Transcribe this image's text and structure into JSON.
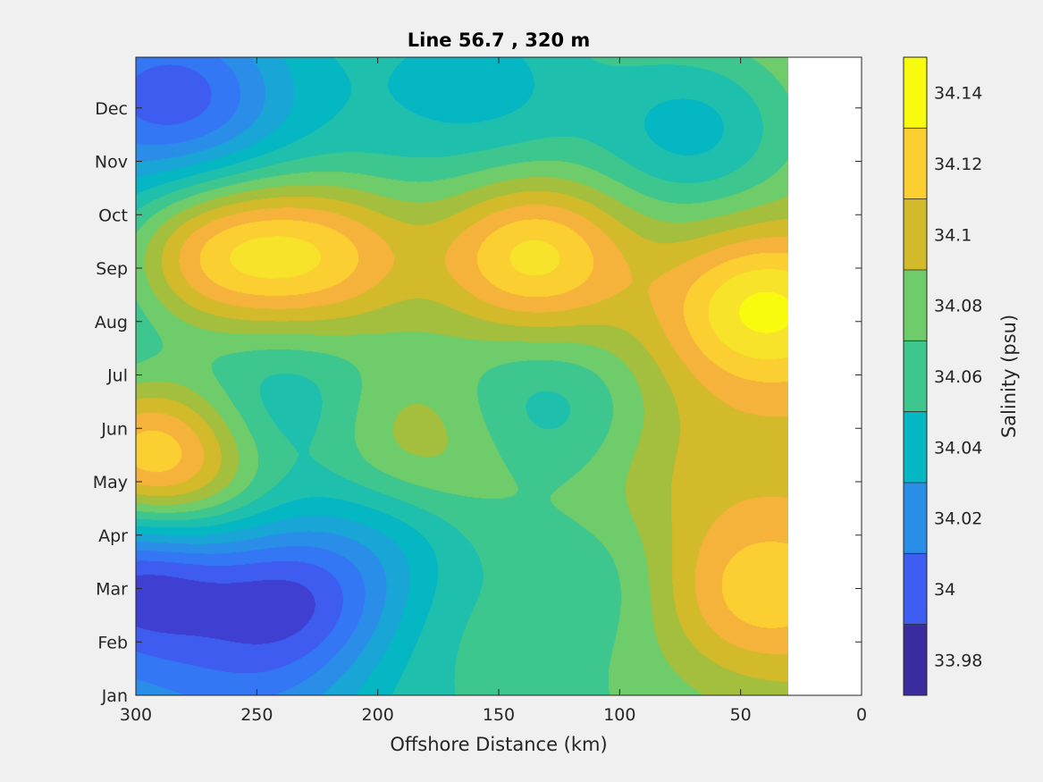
{
  "chart_data": {
    "type": "heatmap",
    "subtype": "filled-contour",
    "title": "Line 56.7 , 320 m",
    "xlabel": "Offshore Distance (km)",
    "ylabel": "",
    "xlim": [
      300,
      0
    ],
    "x_direction": "reversed",
    "x_ticks": [
      300,
      250,
      200,
      150,
      100,
      50,
      0
    ],
    "x_tick_labels": [
      "300",
      "250",
      "200",
      "150",
      "100",
      "50",
      "0"
    ],
    "y_ticks": [
      1,
      2,
      3,
      4,
      5,
      6,
      7,
      8,
      9,
      10,
      11,
      12
    ],
    "y_tick_labels": [
      "Jan",
      "Feb",
      "Mar",
      "Apr",
      "May",
      "Jun",
      "Jul",
      "Aug",
      "Sep",
      "Oct",
      "Nov",
      "Dec"
    ],
    "ylim": [
      1,
      12.95
    ],
    "data_extent_x": [
      300,
      30
    ],
    "colorbar": {
      "label": "Salinity (psu)",
      "range": [
        33.97,
        34.15
      ],
      "level_step": 0.01,
      "tick_values": [
        33.98,
        34.0,
        34.02,
        34.04,
        34.06,
        34.08,
        34.1,
        34.12,
        34.14
      ],
      "tick_labels": [
        "33.98",
        "34",
        "34.02",
        "34.04",
        "34.06",
        "34.08",
        "34.1",
        "34.12",
        "34.14"
      ],
      "colors": [
        "#3a2c9e",
        "#3f3fd1",
        "#3e5cf0",
        "#3377f4",
        "#2a8ee8",
        "#19a5d6",
        "#05b6c3",
        "#1fbfad",
        "#3ec68f",
        "#6fcc6a",
        "#a3bf3d",
        "#d2ba2a",
        "#f5b33c",
        "#fbcf31",
        "#f7e32a",
        "#f9fb0e"
      ]
    },
    "features": [
      {
        "x": 300,
        "y": 1.0,
        "value": 34.03
      },
      {
        "x": 285,
        "y": 12.2,
        "value": 33.99
      },
      {
        "x": 160,
        "y": 12.5,
        "value": 34.04
      },
      {
        "x": 72,
        "y": 11.6,
        "value": 34.04
      },
      {
        "x": 265,
        "y": 9.2,
        "value": 34.12
      },
      {
        "x": 220,
        "y": 9.2,
        "value": 34.12
      },
      {
        "x": 135,
        "y": 9.2,
        "value": 34.14
      },
      {
        "x": 40,
        "y": 8.2,
        "value": 34.15
      },
      {
        "x": 290,
        "y": 5.5,
        "value": 34.14
      },
      {
        "x": 245,
        "y": 6.3,
        "value": 34.04
      },
      {
        "x": 135,
        "y": 6.4,
        "value": 34.05
      },
      {
        "x": 182,
        "y": 5.7,
        "value": 34.1
      },
      {
        "x": 50,
        "y": 5.4,
        "value": 34.1
      },
      {
        "x": 300,
        "y": 3.0,
        "value": 33.98
      },
      {
        "x": 235,
        "y": 2.8,
        "value": 33.99
      },
      {
        "x": 40,
        "y": 3.0,
        "value": 34.13
      },
      {
        "x": 255,
        "y": 1.3,
        "value": 34.02
      },
      {
        "x": 200,
        "y": 4.0,
        "value": 34.04
      },
      {
        "x": 120,
        "y": 3.0,
        "value": 34.06
      }
    ]
  }
}
